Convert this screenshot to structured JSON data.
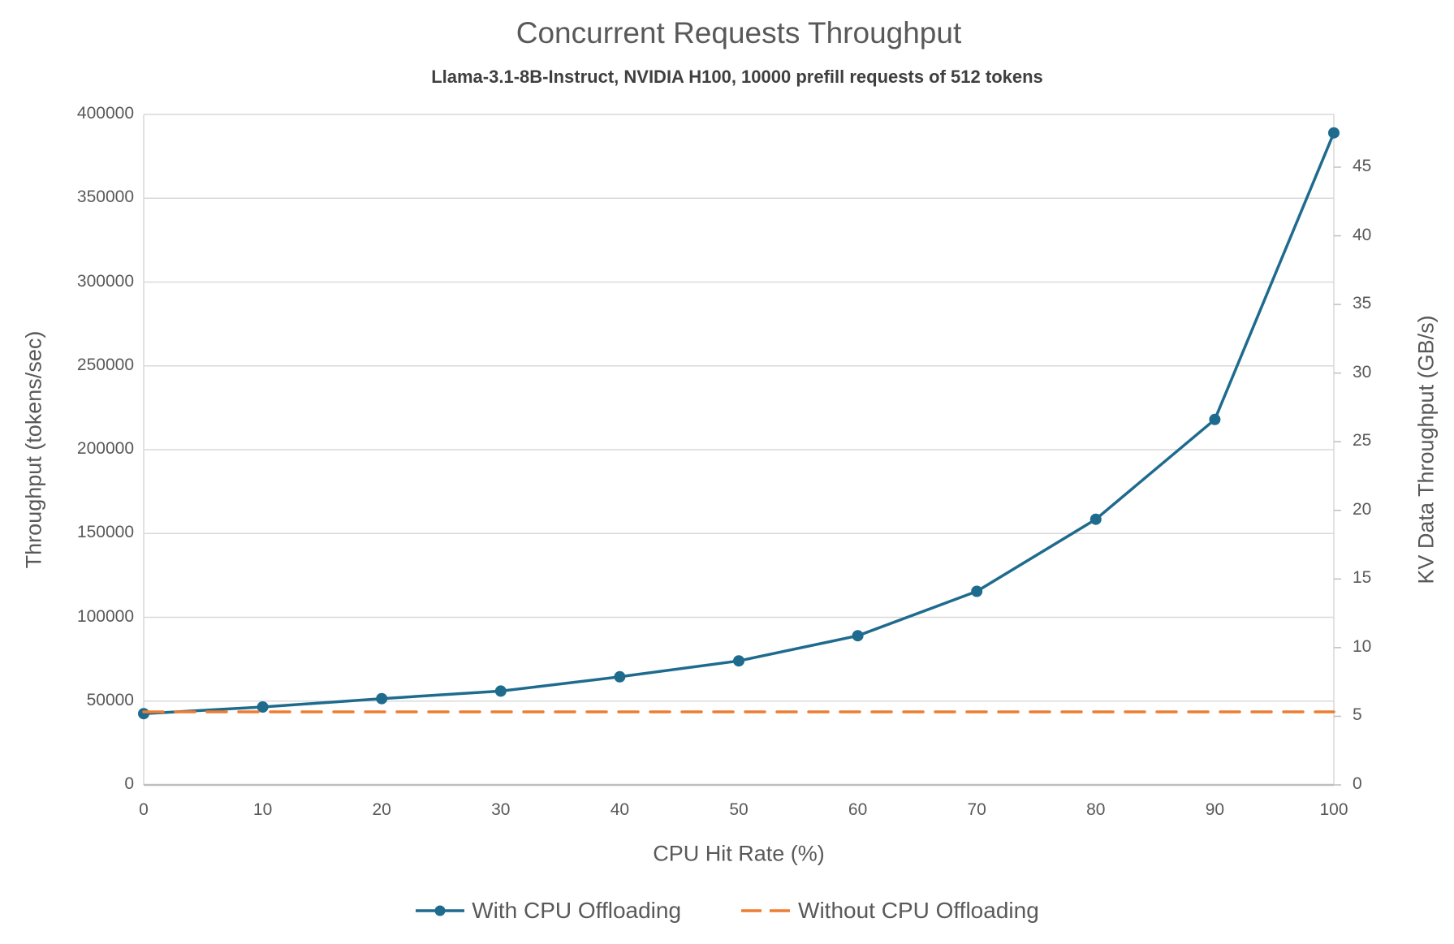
{
  "title": "Concurrent Requests Throughput",
  "subtitle": "Llama-3.1-8B-Instruct, NVIDIA H100, 10000 prefill requests of 512 tokens",
  "chart_data": {
    "type": "line",
    "x": [
      0,
      10,
      20,
      30,
      40,
      50,
      60,
      70,
      80,
      90,
      100
    ],
    "series": [
      {
        "name": "With CPU Offloading",
        "color": "#1F6B8E",
        "style": "solid",
        "marker": "circle",
        "axis": "left",
        "values": [
          42500,
          46500,
          51500,
          56000,
          64500,
          74000,
          89000,
          115500,
          158500,
          218000,
          389000
        ],
        "kv_values_gbps": [
          5.2,
          5.7,
          6.3,
          6.8,
          7.9,
          9.0,
          10.9,
          14.1,
          19.3,
          26.6,
          47.5
        ]
      },
      {
        "name": "Without CPU Offloading",
        "color": "#ED7D31",
        "style": "dashed",
        "marker": "none",
        "axis": "left",
        "values": [
          43600,
          43600,
          43600,
          43600,
          43600,
          43600,
          43600,
          43600,
          43600,
          43600,
          43600
        ],
        "kv_values_gbps": [
          5.3,
          5.3,
          5.3,
          5.3,
          5.3,
          5.3,
          5.3,
          5.3,
          5.3,
          5.3,
          5.3
        ]
      }
    ],
    "xlabel": "CPU Hit Rate (%)",
    "ylabel_left": "Throughput (tokens/sec)",
    "ylabel_right": "KV Data Throughput (GB/s)",
    "ylim_left": [
      0,
      400000
    ],
    "ylim_right": [
      0,
      48.84
    ],
    "xlim": [
      0,
      100
    ],
    "left_ticks": [
      0,
      50000,
      100000,
      150000,
      200000,
      250000,
      300000,
      350000,
      400000
    ],
    "right_ticks": [
      0,
      5,
      10,
      15,
      20,
      25,
      30,
      35,
      40,
      45
    ],
    "x_ticks": [
      0,
      10,
      20,
      30,
      40,
      50,
      60,
      70,
      80,
      90,
      100
    ],
    "grid": "horizontal",
    "legend_position": "bottom"
  },
  "colors": {
    "series_with_offloading": "#1F6B8E",
    "series_without_offloading": "#ED7D31",
    "text_gray": "#595959",
    "gridline": "#D9D9D9",
    "axis_line": "#BFBFBF",
    "background": "#FFFFFF"
  }
}
